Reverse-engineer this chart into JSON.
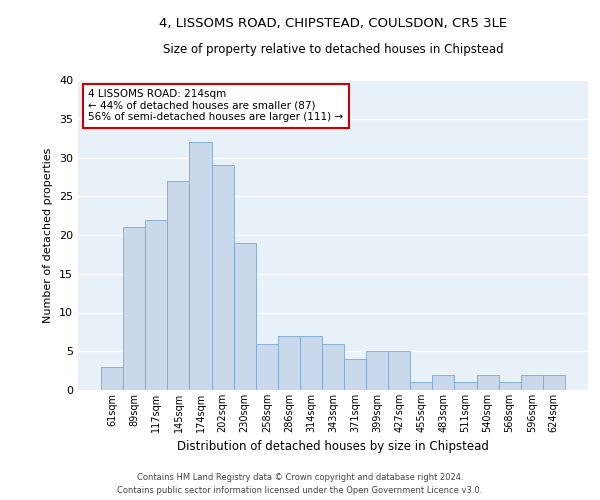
{
  "title1": "4, LISSOMS ROAD, CHIPSTEAD, COULSDON, CR5 3LE",
  "title2": "Size of property relative to detached houses in Chipstead",
  "xlabel": "Distribution of detached houses by size in Chipstead",
  "ylabel": "Number of detached properties",
  "categories": [
    "61sqm",
    "89sqm",
    "117sqm",
    "145sqm",
    "174sqm",
    "202sqm",
    "230sqm",
    "258sqm",
    "286sqm",
    "314sqm",
    "343sqm",
    "371sqm",
    "399sqm",
    "427sqm",
    "455sqm",
    "483sqm",
    "511sqm",
    "540sqm",
    "568sqm",
    "596sqm",
    "624sqm"
  ],
  "values": [
    3,
    21,
    22,
    27,
    32,
    29,
    19,
    6,
    7,
    7,
    6,
    4,
    5,
    5,
    1,
    2,
    1,
    2,
    1,
    2,
    2
  ],
  "bar_color": "#c9d9eb",
  "bar_edge_color": "#7aaace",
  "bg_color": "#e8f0f8",
  "annotation_text": "4 LISSOMS ROAD: 214sqm\n← 44% of detached houses are smaller (87)\n56% of semi-detached houses are larger (111) →",
  "annotation_box_color": "#ffffff",
  "annotation_box_edge": "#cc0000",
  "footer1": "Contains HM Land Registry data © Crown copyright and database right 2024.",
  "footer2": "Contains public sector information licensed under the Open Government Licence v3.0.",
  "ylim": [
    0,
    40
  ],
  "yticks": [
    0,
    5,
    10,
    15,
    20,
    25,
    30,
    35,
    40
  ]
}
